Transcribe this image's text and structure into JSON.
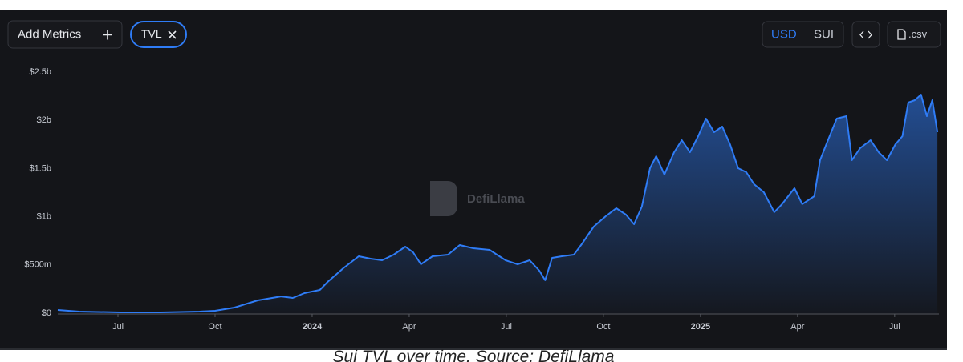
{
  "controls": {
    "add_metrics": "Add Metrics",
    "metric_chip": "TVL",
    "currency_options": [
      "USD",
      "SUI"
    ],
    "csv": ".csv"
  },
  "watermark": "DefiLlama",
  "caption": "Sui TVL over time. Source: DefiLlama",
  "chart_data": {
    "type": "area",
    "color": "#2f7cf6",
    "grid": false,
    "x": [
      2023.345,
      2023.4,
      2023.506,
      2023.61,
      2023.71,
      2023.75,
      2023.8,
      2023.86,
      2023.92,
      2023.95,
      2023.98,
      2024.02,
      2024.04,
      2024.08,
      2024.12,
      2024.15,
      2024.18,
      2024.21,
      2024.24,
      2024.26,
      2024.28,
      2024.31,
      2024.35,
      2024.38,
      2024.415,
      2024.457,
      2024.498,
      2024.529,
      2024.56,
      2024.585,
      2024.6,
      2024.618,
      2024.643,
      2024.674,
      2024.694,
      2024.725,
      2024.756,
      2024.783,
      2024.808,
      2024.829,
      2024.849,
      2024.87,
      2024.886,
      2024.907,
      2024.932,
      2024.952,
      2024.973,
      2024.994,
      2025.014,
      2025.035,
      2025.056,
      2025.076,
      2025.097,
      2025.118,
      2025.138,
      2025.163,
      2025.19,
      2025.21,
      2025.242,
      2025.262,
      2025.293,
      2025.308,
      2025.324,
      2025.351,
      2025.376,
      2025.39,
      2025.411,
      2025.438,
      2025.459,
      2025.48,
      2025.502,
      2025.52,
      2025.535,
      2025.552,
      2025.568,
      2025.583,
      2025.597,
      2025.61
    ],
    "values": [
      33000000,
      17000000,
      8000000,
      8000000,
      17000000,
      25000000,
      58000000,
      133000000,
      174000000,
      158000000,
      208000000,
      241000000,
      324000000,
      465000000,
      590000000,
      565000000,
      548000000,
      606000000,
      689000000,
      631000000,
      507000000,
      590000000,
      606000000,
      706000000,
      673000000,
      656000000,
      548000000,
      507000000,
      548000000,
      440000000,
      341000000,
      573000000,
      590000000,
      606000000,
      714000000,
      897000000,
      1005000000,
      1088000000,
      1022000000,
      922000000,
      1105000000,
      1503000000,
      1628000000,
      1437000000,
      1669000000,
      1794000000,
      1669000000,
      1835000000,
      2018000000,
      1877000000,
      1935000000,
      1752000000,
      1503000000,
      1462000000,
      1337000000,
      1254000000,
      1047000000,
      1130000000,
      1296000000,
      1130000000,
      1213000000,
      1586000000,
      1752000000,
      2018000000,
      2043000000,
      1586000000,
      1711000000,
      1794000000,
      1669000000,
      1586000000,
      1752000000,
      1835000000,
      2184000000,
      2209000000,
      2267000000,
      2043000000,
      2209000000,
      1877000000
    ],
    "xlim": [
      2023.345,
      2025.614
    ],
    "xticks": [
      {
        "value": 2023.5,
        "label": "Jul"
      },
      {
        "value": 2023.75,
        "label": "Oct"
      },
      2024,
      {
        "value": 2024.25,
        "label": "Apr"
      },
      {
        "value": 2024.5,
        "label": "Jul"
      },
      {
        "value": 2024.75,
        "label": "Oct"
      },
      2025,
      {
        "value": 2025.25,
        "label": "Apr"
      },
      {
        "value": 2025.5,
        "label": "Jul"
      }
    ],
    "ylim": [
      0,
      2500000000
    ],
    "yticks": [
      {
        "value": 0,
        "label": "$0"
      },
      {
        "value": 500000000,
        "label": "$500m"
      },
      {
        "value": 1000000000,
        "label": "$1b"
      },
      {
        "value": 1500000000,
        "label": "$1.5b"
      },
      {
        "value": 2000000000,
        "label": "$2b"
      },
      {
        "value": 2500000000,
        "label": "$2.5b"
      }
    ]
  }
}
